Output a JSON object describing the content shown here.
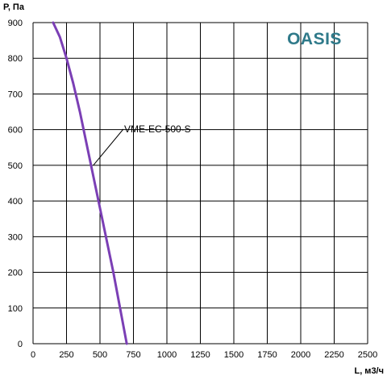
{
  "brand": {
    "logo_text": "OASIS",
    "color": "#2F7A8A"
  },
  "chart_data": {
    "type": "line",
    "xlabel": "L, м3/ч",
    "ylabel": "Р, Па",
    "xlim": [
      0,
      2500
    ],
    "ylim": [
      0,
      900
    ],
    "xticks": [
      0,
      250,
      500,
      750,
      1000,
      1250,
      1500,
      1750,
      2000,
      2250,
      2500
    ],
    "yticks": [
      0,
      100,
      200,
      300,
      400,
      500,
      600,
      700,
      800,
      900
    ],
    "grid": true,
    "series": [
      {
        "name": "VME-EC-500-S",
        "color": "#7B3FB5",
        "x": [
          150,
          200,
          250,
          300,
          350,
          400,
          450,
          500,
          550,
          600,
          650,
          700
        ],
        "y": [
          900,
          860,
          800,
          730,
          650,
          560,
          470,
          380,
          290,
          200,
          100,
          0
        ]
      }
    ],
    "annotation": {
      "text": "VME-EC-500-S",
      "x": 450,
      "y": 500
    }
  }
}
